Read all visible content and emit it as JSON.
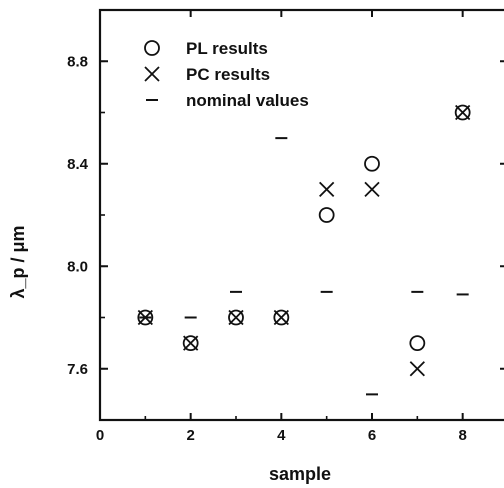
{
  "chart_data": {
    "type": "scatter",
    "title": "",
    "xlabel": "sample",
    "ylabel": "λ_p / μm",
    "xlim": [
      0,
      9
    ],
    "ylim": [
      7.4,
      9.0
    ],
    "x_ticks": [
      0,
      2,
      4,
      6,
      8
    ],
    "y_ticks": [
      7.6,
      8.0,
      8.4,
      8.8
    ],
    "x_tick_labels": [
      "0",
      "2",
      "4",
      "6",
      "8"
    ],
    "y_tick_labels": [
      "7.6",
      "8.0",
      "8.4",
      "8.8"
    ],
    "grid": false,
    "legend_position": "top-left",
    "series": [
      {
        "name": "PL results",
        "marker": "circle",
        "x": [
          1,
          2,
          3,
          4,
          5,
          6,
          7,
          8
        ],
        "y": [
          7.8,
          7.7,
          7.8,
          7.8,
          8.2,
          8.4,
          7.7,
          8.6
        ]
      },
      {
        "name": "PC results",
        "marker": "cross",
        "x": [
          1,
          2,
          3,
          4,
          5,
          6,
          7,
          8
        ],
        "y": [
          7.8,
          7.7,
          7.8,
          7.8,
          8.3,
          8.3,
          7.6,
          8.6
        ]
      },
      {
        "name": "nominal values",
        "marker": "dash",
        "x": [
          1,
          2,
          3,
          4,
          5,
          6,
          7,
          8
        ],
        "y": [
          7.8,
          7.8,
          7.9,
          8.5,
          7.9,
          7.5,
          7.9,
          7.89
        ]
      }
    ]
  }
}
